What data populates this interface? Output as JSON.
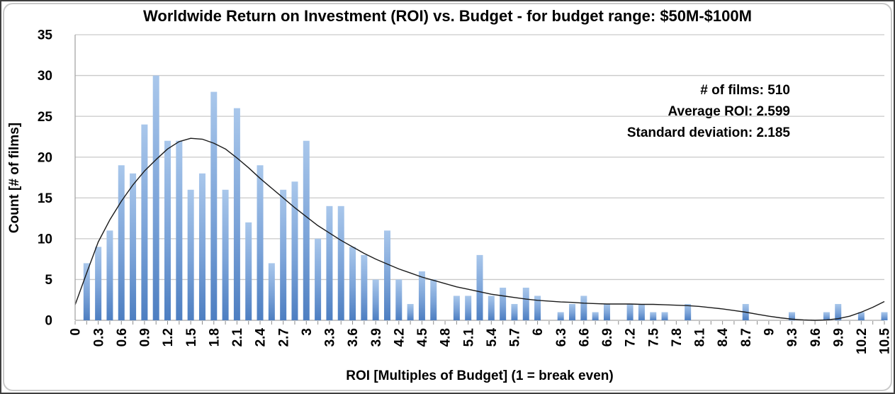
{
  "window": {
    "title": "Worldwide Return on Investment (ROI) vs. Budget - for budget range: $50M-$100M"
  },
  "stats": {
    "lines": [
      "# of films: 510",
      "Average ROI: 2.599",
      "Standard deviation: 2.185"
    ],
    "films": 510,
    "average_roi": 2.599,
    "std_dev": 2.185
  },
  "chart_data": {
    "type": "bar",
    "subtype": "histogram-with-fit-curve",
    "title": "Worldwide Return on Investment (ROI) vs. Budget - for budget range: $50M-$100M",
    "xlabel": "ROI [Multiples of Budget] (1 = break even)",
    "ylabel": "Count [# of films]",
    "ylim": [
      0,
      35
    ],
    "y_ticks": [
      0,
      5,
      10,
      15,
      20,
      25,
      30,
      35
    ],
    "grid": "horizontal",
    "legend_position": "none",
    "bin_width": 0.15,
    "x_tick_step": 0.3,
    "x_tick_labels": [
      "0",
      "0.3",
      "0.6",
      "0.9",
      "1.2",
      "1.5",
      "1.8",
      "2.1",
      "2.4",
      "2.7",
      "3",
      "3.3",
      "3.6",
      "3.9",
      "4.2",
      "4.5",
      "4.8",
      "5.1",
      "5.4",
      "5.7",
      "6",
      "6.3",
      "6.6",
      "6.9",
      "7.2",
      "7.5",
      "7.8",
      "8.1",
      "8.4",
      "8.7",
      "9",
      "9.3",
      "9.6",
      "9.9",
      "10.2",
      "10.5"
    ],
    "categories": [
      0,
      0.15,
      0.3,
      0.45,
      0.6,
      0.75,
      0.9,
      1.05,
      1.2,
      1.35,
      1.5,
      1.65,
      1.8,
      1.95,
      2.1,
      2.25,
      2.4,
      2.55,
      2.7,
      2.85,
      3,
      3.15,
      3.3,
      3.45,
      3.6,
      3.75,
      3.9,
      4.05,
      4.2,
      4.35,
      4.5,
      4.65,
      4.8,
      4.95,
      5.1,
      5.25,
      5.4,
      5.55,
      5.7,
      5.85,
      6,
      6.15,
      6.3,
      6.45,
      6.6,
      6.75,
      6.9,
      7.05,
      7.2,
      7.35,
      7.5,
      7.65,
      7.8,
      7.95,
      8.1,
      8.25,
      8.4,
      8.55,
      8.7,
      8.85,
      9,
      9.15,
      9.3,
      9.45,
      9.6,
      9.75,
      9.9,
      10.05,
      10.2,
      10.35,
      10.5
    ],
    "values": [
      0,
      7,
      9,
      11,
      19,
      18,
      24,
      30,
      22,
      22,
      16,
      18,
      28,
      16,
      26,
      12,
      19,
      7,
      16,
      17,
      22,
      10,
      14,
      14,
      9,
      8,
      5,
      11,
      5,
      2,
      6,
      5,
      0,
      3,
      3,
      8,
      3,
      4,
      2,
      4,
      3,
      0,
      1,
      2,
      3,
      1,
      2,
      0,
      2,
      2,
      1,
      1,
      0,
      2,
      0,
      0,
      0,
      0,
      2,
      0,
      0,
      0,
      1,
      0,
      0,
      1,
      2,
      0,
      1,
      0,
      1
    ],
    "series": [
      {
        "name": "histogram-counts",
        "style": "bars",
        "color_top": "#a9c7eb",
        "color_bottom": "#4d7ec1"
      },
      {
        "name": "fit-curve",
        "style": "line",
        "color": "#1a1a1a",
        "y": [
          1.9,
          5.8,
          9.6,
          12.3,
          14.6,
          16.6,
          18.3,
          19.7,
          21.0,
          21.9,
          22.3,
          22.2,
          21.7,
          21.0,
          19.9,
          18.7,
          17.4,
          16.2,
          15.0,
          13.8,
          12.7,
          11.6,
          10.7,
          9.8,
          9.0,
          8.2,
          7.5,
          6.9,
          6.3,
          5.8,
          5.3,
          4.9,
          4.5,
          4.1,
          3.8,
          3.5,
          3.2,
          3.0,
          2.8,
          2.6,
          2.45,
          2.35,
          2.25,
          2.2,
          2.1,
          2.05,
          2.0,
          2.0,
          2.0,
          1.95,
          1.95,
          1.9,
          1.85,
          1.8,
          1.7,
          1.55,
          1.4,
          1.2,
          1.0,
          0.75,
          0.5,
          0.3,
          0.15,
          0.05,
          0.0,
          0.05,
          0.2,
          0.5,
          1.0,
          1.6,
          2.3
        ]
      }
    ],
    "annotations": [
      "# of films: 510",
      "Average ROI: 2.599",
      "Standard deviation: 2.185"
    ]
  },
  "colors": {
    "gridline": "#c9c9c9",
    "axis_line": "#a6a6a6",
    "tick_mark": "#8c8c8c",
    "bar_top": "#a9c7eb",
    "bar_bottom": "#4d7ec1",
    "curve": "#1a1a1a",
    "frame_border": "#3f3f3f",
    "inner_border": "#c9c9c9"
  }
}
